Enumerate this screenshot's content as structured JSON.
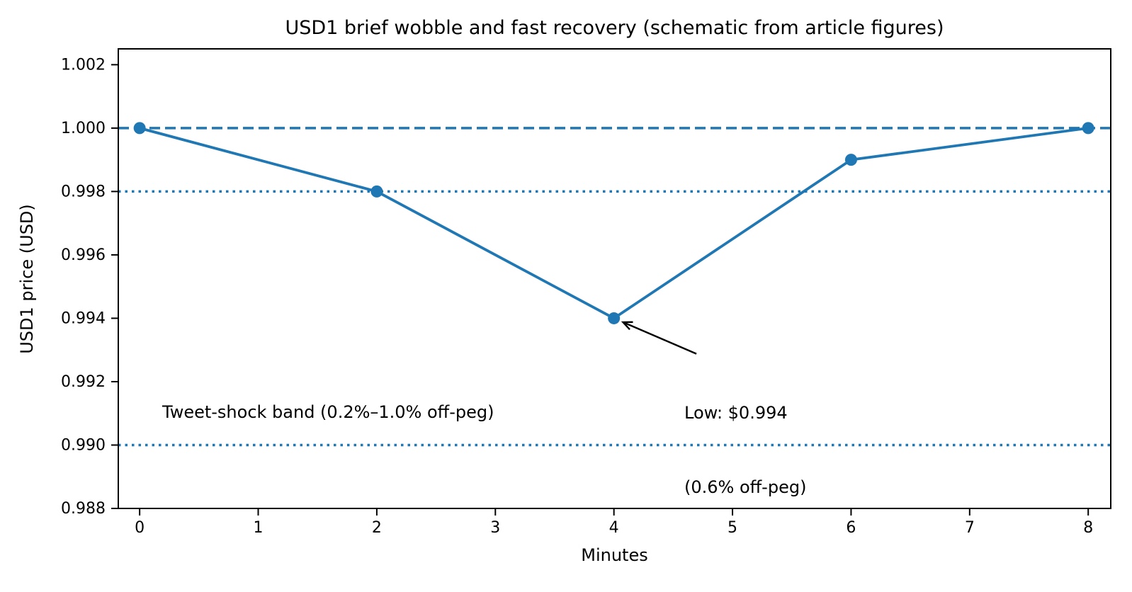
{
  "chart_data": {
    "type": "line",
    "title": "USD1 brief wobble and fast recovery (schematic from article figures)",
    "xlabel": "Minutes",
    "ylabel": "USD1 price (USD)",
    "series": [
      {
        "name": "USD1 price",
        "x": [
          0,
          2,
          4,
          6,
          8
        ],
        "values": [
          1.0,
          0.998,
          0.994,
          0.999,
          1.0
        ],
        "color": "#1f77b4",
        "line_style": "solid",
        "marker": "circle"
      }
    ],
    "reference_lines": [
      {
        "y": 1.0,
        "style": "dashed",
        "color": "#1f77b4",
        "meaning": "peg"
      },
      {
        "y": 0.998,
        "style": "dotted",
        "color": "#1f77b4",
        "meaning": "band upper (0.2% off-peg)"
      },
      {
        "y": 0.99,
        "style": "dotted",
        "color": "#1f77b4",
        "meaning": "band lower (1.0% off-peg)"
      }
    ],
    "annotation": {
      "line1": "Low: $0.994",
      "line2": "(0.6% off-peg)",
      "target": {
        "x": 4,
        "y": 0.994
      },
      "text_pos": {
        "x": 4.6,
        "y": 0.9927
      },
      "arrow_color": "#000000"
    },
    "band_label": {
      "text": "Tweet-shock band (0.2%–1.0% off-peg)",
      "x": 0.2,
      "y": 0.9908
    },
    "x_ticks": [
      0,
      1,
      2,
      3,
      4,
      5,
      6,
      7,
      8
    ],
    "x_tick_labels": [
      "0",
      "1",
      "2",
      "3",
      "4",
      "5",
      "6",
      "7",
      "8"
    ],
    "y_ticks": [
      0.988,
      0.99,
      0.992,
      0.994,
      0.996,
      0.998,
      1.0,
      1.002
    ],
    "y_tick_labels": [
      "0.988",
      "0.990",
      "0.992",
      "0.994",
      "0.996",
      "0.998",
      "1.000",
      "1.002"
    ],
    "xlim": [
      -0.18,
      8.19
    ],
    "ylim": [
      0.988,
      1.0025
    ],
    "grid": false,
    "legend": "none",
    "colors": {
      "accent": "#1f77b4",
      "axes": "#000000",
      "text": "#000000",
      "background": "#ffffff"
    }
  }
}
